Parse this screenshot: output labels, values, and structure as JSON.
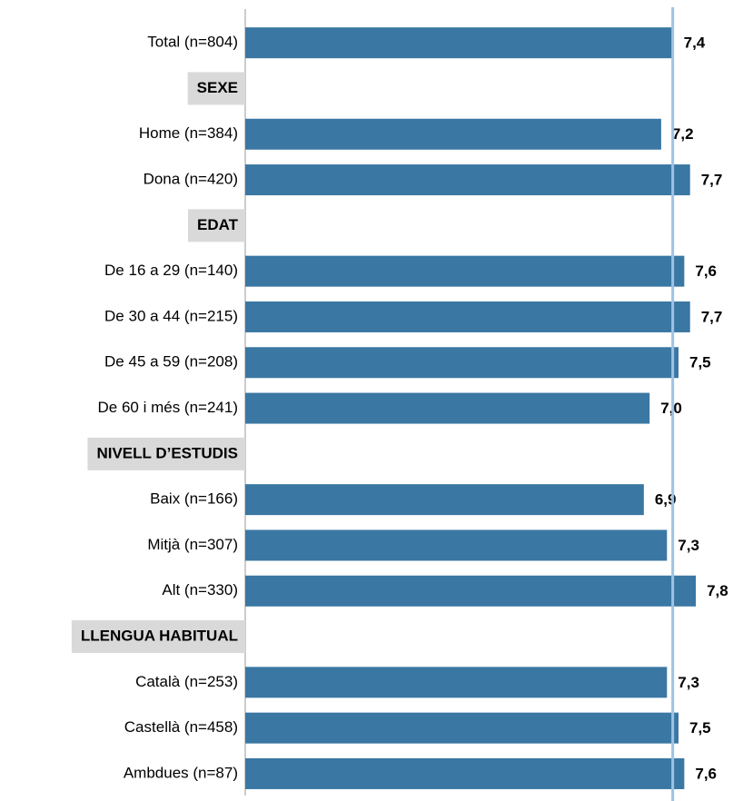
{
  "chart_data": {
    "type": "bar",
    "orientation": "horizontal",
    "categories": [
      "Total (n=804)",
      "SEXE",
      "Home (n=384)",
      "Dona (n=420)",
      "EDAT",
      "De 16 a 29 (n=140)",
      "De 30 a 44 (n=215)",
      "De 45 a 59 (n=208)",
      "De 60 i més (n=241)",
      "NIVELL D’ESTUDIS",
      "Baix (n=166)",
      "Mitjà (n=307)",
      "Alt (n=330)",
      "LLENGUA HABITUAL",
      "Català (n=253)",
      "Castellà (n=458)",
      "Ambdues (n=87)"
    ],
    "values": [
      7.4,
      null,
      7.2,
      7.7,
      null,
      7.6,
      7.7,
      7.5,
      7.0,
      null,
      6.9,
      7.3,
      7.8,
      null,
      7.3,
      7.5,
      7.6
    ],
    "value_labels": [
      "7,4",
      null,
      "7,2",
      "7,7",
      null,
      "7,6",
      "7,7",
      "7,5",
      "7,0",
      null,
      "6,9",
      "7,3",
      "7,8",
      null,
      "7,3",
      "7,5",
      "7,6"
    ],
    "color": "#3a77a3",
    "xlim": [
      0,
      10
    ]
  }
}
